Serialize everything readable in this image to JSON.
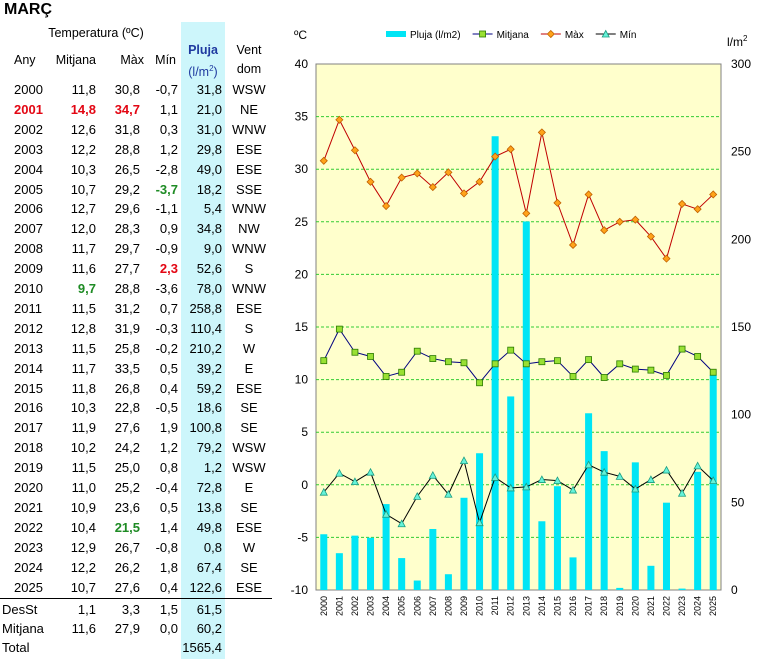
{
  "title": "MARÇ",
  "table": {
    "header_group": "Temperatura (ºC)",
    "headers": {
      "any": "Any",
      "mitjana": "Mitjana",
      "max": "Màx",
      "min": "Mín",
      "pluja": "Pluja",
      "pluja_unit": "(l/m2)",
      "vent": "Vent",
      "vent_sub": "dom"
    },
    "rows": [
      {
        "any": "2000",
        "mitjana": "11,8",
        "max": "30,8",
        "min": "-0,7",
        "pluja": "31,8",
        "vent": "WSW"
      },
      {
        "any": "2001",
        "mitjana": "14,8",
        "max": "34,7",
        "min": "1,1",
        "pluja": "21,0",
        "vent": "NE",
        "hl": {
          "any": "red",
          "mitjana": "red",
          "max": "red"
        }
      },
      {
        "any": "2002",
        "mitjana": "12,6",
        "max": "31,8",
        "min": "0,3",
        "pluja": "31,0",
        "vent": "WNW"
      },
      {
        "any": "2003",
        "mitjana": "12,2",
        "max": "28,8",
        "min": "1,2",
        "pluja": "29,8",
        "vent": "ESE"
      },
      {
        "any": "2004",
        "mitjana": "10,3",
        "max": "26,5",
        "min": "-2,8",
        "pluja": "49,0",
        "vent": "ESE"
      },
      {
        "any": "2005",
        "mitjana": "10,7",
        "max": "29,2",
        "min": "-3,7",
        "pluja": "18,2",
        "vent": "SSE",
        "hl": {
          "min": "green"
        }
      },
      {
        "any": "2006",
        "mitjana": "12,7",
        "max": "29,6",
        "min": "-1,1",
        "pluja": "5,4",
        "vent": "WNW"
      },
      {
        "any": "2007",
        "mitjana": "12,0",
        "max": "28,3",
        "min": "0,9",
        "pluja": "34,8",
        "vent": "NW"
      },
      {
        "any": "2008",
        "mitjana": "11,7",
        "max": "29,7",
        "min": "-0,9",
        "pluja": "9,0",
        "vent": "WNW"
      },
      {
        "any": "2009",
        "mitjana": "11,6",
        "max": "27,7",
        "min": "2,3",
        "pluja": "52,6",
        "vent": "S",
        "hl": {
          "min": "red"
        }
      },
      {
        "any": "2010",
        "mitjana": "9,7",
        "max": "28,8",
        "min": "-3,6",
        "pluja": "78,0",
        "vent": "WNW",
        "hl": {
          "mitjana": "green"
        }
      },
      {
        "any": "2011",
        "mitjana": "11,5",
        "max": "31,2",
        "min": "0,7",
        "pluja": "258,8",
        "vent": "ESE"
      },
      {
        "any": "2012",
        "mitjana": "12,8",
        "max": "31,9",
        "min": "-0,3",
        "pluja": "110,4",
        "vent": "S"
      },
      {
        "any": "2013",
        "mitjana": "11,5",
        "max": "25,8",
        "min": "-0,2",
        "pluja": "210,2",
        "vent": "W"
      },
      {
        "any": "2014",
        "mitjana": "11,7",
        "max": "33,5",
        "min": "0,5",
        "pluja": "39,2",
        "vent": "E"
      },
      {
        "any": "2015",
        "mitjana": "11,8",
        "max": "26,8",
        "min": "0,4",
        "pluja": "59,2",
        "vent": "ESE"
      },
      {
        "any": "2016",
        "mitjana": "10,3",
        "max": "22,8",
        "min": "-0,5",
        "pluja": "18,6",
        "vent": "SE"
      },
      {
        "any": "2017",
        "mitjana": "11,9",
        "max": "27,6",
        "min": "1,9",
        "pluja": "100,8",
        "vent": "SE"
      },
      {
        "any": "2018",
        "mitjana": "10,2",
        "max": "24,2",
        "min": "1,2",
        "pluja": "79,2",
        "vent": "WSW"
      },
      {
        "any": "2019",
        "mitjana": "11,5",
        "max": "25,0",
        "min": "0,8",
        "pluja": "1,2",
        "vent": "WSW"
      },
      {
        "any": "2020",
        "mitjana": "11,0",
        "max": "25,2",
        "min": "-0,4",
        "pluja": "72,8",
        "vent": "E"
      },
      {
        "any": "2021",
        "mitjana": "10,9",
        "max": "23,6",
        "min": "0,5",
        "pluja": "13,8",
        "vent": "SE"
      },
      {
        "any": "2022",
        "mitjana": "10,4",
        "max": "21,5",
        "min": "1,4",
        "pluja": "49,8",
        "vent": "ESE",
        "hl": {
          "max": "green"
        }
      },
      {
        "any": "2023",
        "mitjana": "12,9",
        "max": "26,7",
        "min": "-0,8",
        "pluja": "0,8",
        "vent": "W"
      },
      {
        "any": "2024",
        "mitjana": "12,2",
        "max": "26,2",
        "min": "1,8",
        "pluja": "67,4",
        "vent": "SE"
      },
      {
        "any": "2025",
        "mitjana": "10,7",
        "max": "27,6",
        "min": "0,4",
        "pluja": "122,6",
        "vent": "ESE"
      }
    ],
    "summary": [
      {
        "label": "DesSt",
        "mitjana": "1,1",
        "max": "3,3",
        "min": "1,5",
        "pluja": "61,5"
      },
      {
        "label": "Mitjana",
        "mitjana": "11,6",
        "max": "27,9",
        "min": "0,0",
        "pluja": "60,2"
      },
      {
        "label": "Total",
        "mitjana": "",
        "max": "",
        "min": "",
        "pluja": "1565,4"
      }
    ]
  },
  "chart_data": {
    "type": "bar+line",
    "left_axis_label": "ºC",
    "right_axis_label": "l/m2",
    "ylim_left": [
      -10,
      40
    ],
    "ylim_right": [
      0,
      300
    ],
    "y_ticks_left": [
      -10,
      -5,
      0,
      5,
      10,
      15,
      20,
      25,
      30,
      35,
      40
    ],
    "y_ticks_right": [
      0,
      50,
      100,
      150,
      200,
      250,
      300
    ],
    "categories": [
      "2000",
      "2001",
      "2002",
      "2003",
      "2004",
      "2005",
      "2006",
      "2007",
      "2008",
      "2009",
      "2010",
      "2011",
      "2012",
      "2013",
      "2014",
      "2015",
      "2016",
      "2017",
      "2018",
      "2019",
      "2020",
      "2021",
      "2022",
      "2023",
      "2024",
      "2025"
    ],
    "series": [
      {
        "name": "Pluja (l/m2)",
        "kind": "bar",
        "axis": "right",
        "color": "#00e5f5",
        "values": [
          31.8,
          21.0,
          31.0,
          29.8,
          49.0,
          18.2,
          5.4,
          34.8,
          9.0,
          52.6,
          78.0,
          258.8,
          110.4,
          210.2,
          39.2,
          59.2,
          18.6,
          100.8,
          79.2,
          1.2,
          72.8,
          13.8,
          49.8,
          0.8,
          67.4,
          122.6
        ]
      },
      {
        "name": "Mitjana",
        "kind": "line",
        "axis": "left",
        "color": "#000080",
        "marker": "square",
        "marker_color": "#99e033",
        "values": [
          11.8,
          14.8,
          12.6,
          12.2,
          10.3,
          10.7,
          12.7,
          12.0,
          11.7,
          11.6,
          9.7,
          11.5,
          12.8,
          11.5,
          11.7,
          11.8,
          10.3,
          11.9,
          10.2,
          11.5,
          11.0,
          10.9,
          10.4,
          12.9,
          12.2,
          10.7
        ]
      },
      {
        "name": "Màx",
        "kind": "line",
        "axis": "left",
        "color": "#c00000",
        "marker": "diamond",
        "marker_color": "#ffa31a",
        "values": [
          30.8,
          34.7,
          31.8,
          28.8,
          26.5,
          29.2,
          29.6,
          28.3,
          29.7,
          27.7,
          28.8,
          31.2,
          31.9,
          25.8,
          33.5,
          26.8,
          22.8,
          27.6,
          24.2,
          25.0,
          25.2,
          23.6,
          21.5,
          26.7,
          26.2,
          27.6
        ]
      },
      {
        "name": "Mín",
        "kind": "line",
        "axis": "left",
        "color": "#000000",
        "marker": "triangle",
        "marker_color": "#66f2d9",
        "values": [
          -0.7,
          1.1,
          0.3,
          1.2,
          -2.8,
          -3.7,
          -1.1,
          0.9,
          -0.9,
          2.3,
          -3.6,
          0.7,
          -0.3,
          -0.2,
          0.5,
          0.4,
          -0.5,
          1.9,
          1.2,
          0.8,
          -0.4,
          0.5,
          1.4,
          -0.8,
          1.8,
          0.4
        ]
      }
    ],
    "grid": true,
    "legend_position": "top",
    "plot_background": "#ffffcc",
    "grid_color": "#33cc33"
  }
}
